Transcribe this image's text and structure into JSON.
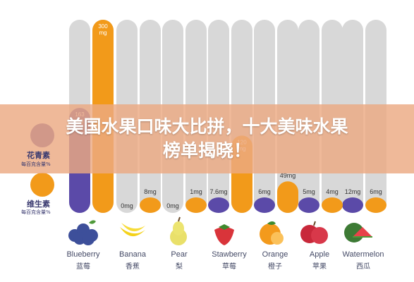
{
  "title": {
    "line1": "美国水果口味大比拼，十大美味水果",
    "line2": "榜单揭晓！"
  },
  "legend": [
    {
      "name": "花青素",
      "sub": "每百克含量%",
      "color": "#5b4aa8"
    },
    {
      "name": "维生素",
      "sub": "每百克含量%",
      "color": "#f29a1a"
    }
  ],
  "colors": {
    "anthocyanin": "#5b4aa8",
    "vitamin": "#f29a1a",
    "track": "#d8d8d8"
  },
  "fruits": [
    {
      "en": "Blueberry",
      "zh": "蓝莓",
      "icon": "blueberry-icon"
    },
    {
      "en": "Banana",
      "zh": "香蕉",
      "icon": "banana-icon"
    },
    {
      "en": "Pear",
      "zh": "梨",
      "icon": "pear-icon"
    },
    {
      "en": "Stawberry",
      "zh": "草莓",
      "icon": "strawberry-icon"
    },
    {
      "en": "Orange",
      "zh": "橙子",
      "icon": "orange-icon"
    },
    {
      "en": "Apple",
      "zh": "苹果",
      "icon": "apple-icon"
    },
    {
      "en": "Watermelon",
      "zh": "西瓜",
      "icon": "watermelon-icon"
    }
  ],
  "chart_data": {
    "type": "bar",
    "categories": [
      "Blueberry",
      "Banana",
      "Pear",
      "Stawberry",
      "Orange",
      "Apple",
      "Watermelon"
    ],
    "series": [
      {
        "name": "花青素",
        "values": [
          163,
          0,
          0,
          7.6,
          6,
          5,
          12
        ],
        "labels": [
          "163 mg",
          "0mg",
          "0mg",
          "7.6mg",
          "6mg",
          "5mg",
          "12mg"
        ]
      },
      {
        "name": "维生素",
        "values": [
          300,
          8,
          1,
          120,
          49,
          4,
          6
        ],
        "labels": [
          "300 mg",
          "8mg",
          "1mg",
          "120 mg",
          "49mg",
          "4mg",
          "6mg"
        ]
      }
    ],
    "ylim": [
      0,
      300
    ],
    "grid": false,
    "legend_position": "left"
  }
}
